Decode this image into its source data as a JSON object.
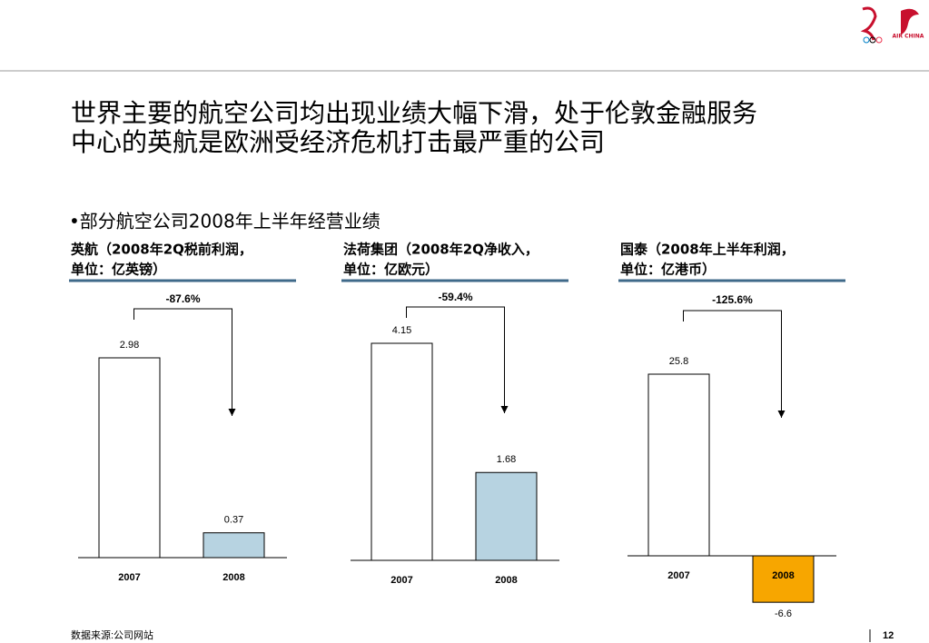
{
  "header": {
    "title": [
      "世界主要的航空公司均出现业绩大幅下滑，处于伦敦金融服务",
      "中心的英航是欧洲受经济危机打击最严重的公司"
    ],
    "logo": "AIR CHINA"
  },
  "section": "•部分航空公司2008年上半年经营业绩",
  "chart_data": [
    {
      "type": "bar",
      "title": [
        "英航（2008年2Q税前利润，",
        "单位：亿英镑）"
      ],
      "annotation": "-87.6%",
      "categories": [
        "2007",
        "2008"
      ],
      "values": [
        2.98,
        0.37
      ],
      "colors": [
        "#ffffff",
        "#b7d3e1"
      ]
    },
    {
      "type": "bar",
      "title": [
        "法荷集团（2008年2Q净收入，",
        "单位：亿欧元）"
      ],
      "annotation": "-59.4%",
      "categories": [
        "2007",
        "2008"
      ],
      "values": [
        4.15,
        1.68
      ],
      "colors": [
        "#ffffff",
        "#b7d3e1"
      ]
    },
    {
      "type": "bar",
      "title": [
        "国泰（2008年上半年利润，",
        "单位：亿港币）"
      ],
      "annotation": "-125.6%",
      "categories": [
        "2007",
        "2008"
      ],
      "values": [
        25.8,
        -6.6
      ],
      "colors": [
        "#ffffff",
        "#f7a600"
      ]
    }
  ],
  "footer": {
    "source": "数据来源:公司网站",
    "page": "12"
  }
}
